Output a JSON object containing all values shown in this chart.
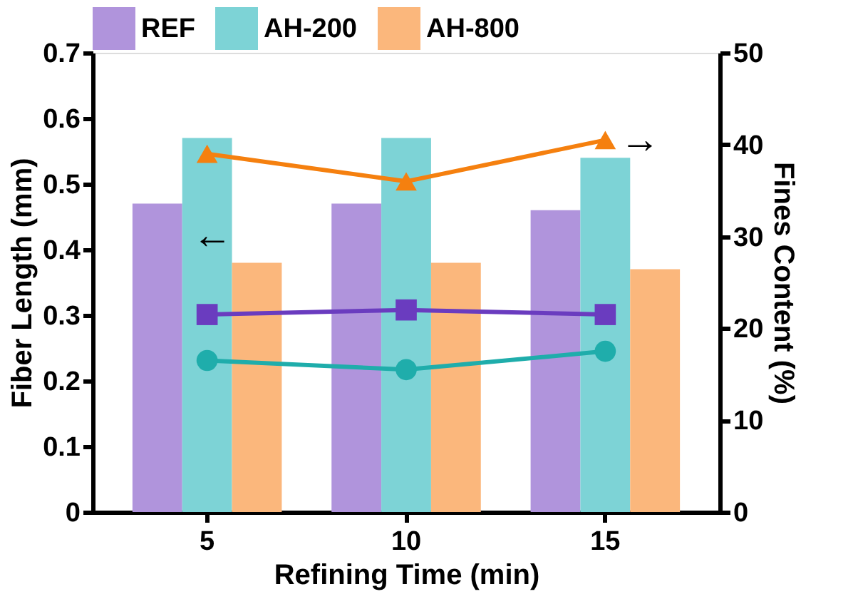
{
  "chart_data": {
    "type": "bar",
    "xlabel": "Refining Time (min)",
    "ylabel": "Fiber Length (mm)",
    "y2label": "Fines Content (%)",
    "categories": [
      "5",
      "10",
      "15"
    ],
    "series": [
      {
        "name": "REF",
        "color": "#b094dc",
        "values": [
          0.47,
          0.47,
          0.46
        ]
      },
      {
        "name": "AH-200",
        "color": "#7dd3d6",
        "values": [
          0.57,
          0.57,
          0.54
        ]
      },
      {
        "name": "AH-800",
        "color": "#fbb77c",
        "values": [
          0.38,
          0.38,
          0.37
        ]
      },
      {
        "type": "line",
        "axis": "y2",
        "color": "#f5800f",
        "marker": "triangle",
        "values": [
          39,
          36,
          40.5
        ]
      },
      {
        "type": "line",
        "axis": "y2",
        "color": "#6a3cbf",
        "marker": "square",
        "values": [
          21.5,
          22,
          21.5
        ]
      },
      {
        "type": "line",
        "axis": "y2",
        "color": "#1fadab",
        "marker": "circle",
        "values": [
          16.5,
          15.5,
          17.5
        ]
      }
    ],
    "annotations": [
      "←",
      "→"
    ],
    "ylim": [
      0,
      0.7
    ],
    "yticks": [
      0,
      0.1,
      0.2,
      0.3,
      0.4,
      0.5,
      0.6,
      0.7
    ],
    "y2lim": [
      0,
      50
    ],
    "y2ticks": [
      0,
      10,
      20,
      30,
      40,
      50
    ],
    "grid": false,
    "legend": "top"
  }
}
